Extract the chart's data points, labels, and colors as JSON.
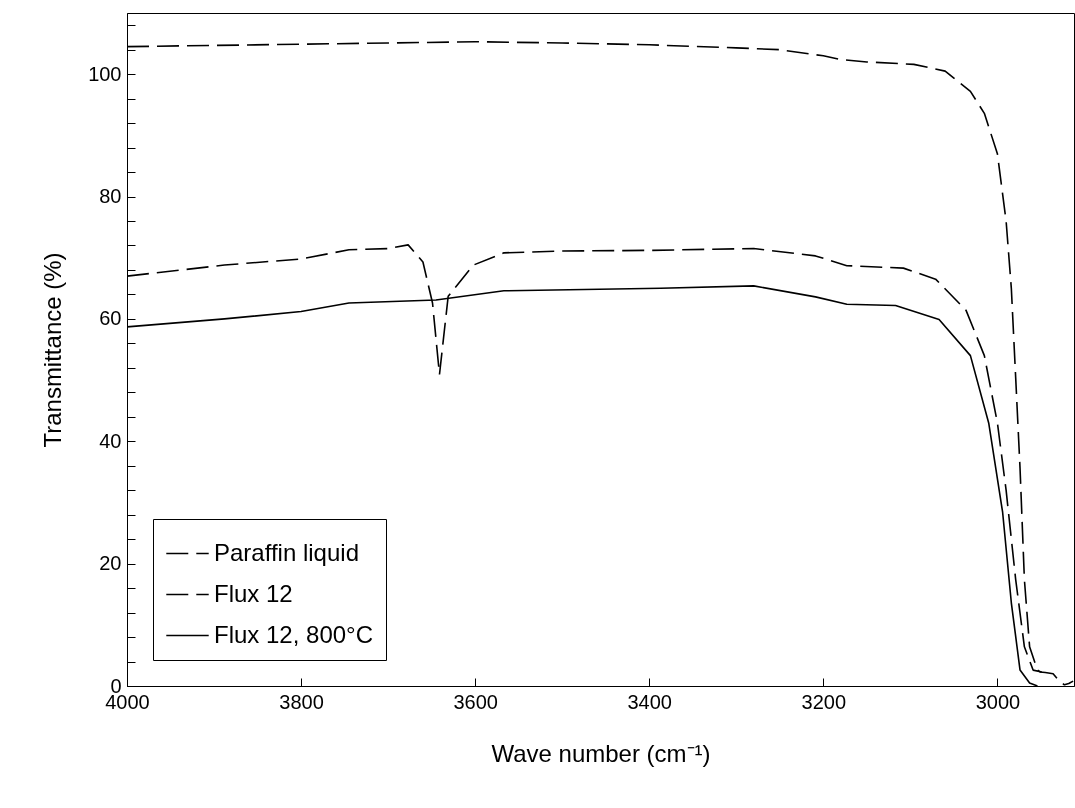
{
  "chart_data": {
    "type": "line",
    "xlabel": "Wave number (cm⁻¹)",
    "ylabel": "Transmittance (%)",
    "xlim": [
      4000,
      2912
    ],
    "xticks": [
      4000,
      3800,
      3600,
      3400,
      3200,
      3000
    ],
    "ylim": [
      0,
      110
    ],
    "yticks": [
      0,
      {
        "value": 4,
        "label": null
      },
      {
        "value": 8,
        "label": null
      },
      {
        "value": 12,
        "label": null
      },
      {
        "value": 16,
        "label": null
      },
      20,
      {
        "value": 24,
        "label": null
      },
      {
        "value": 28,
        "label": null
      },
      {
        "value": 32,
        "label": null
      },
      {
        "value": 36,
        "label": null
      },
      40,
      {
        "value": 44,
        "label": null
      },
      {
        "value": 48,
        "label": null
      },
      {
        "value": 52,
        "label": null
      },
      {
        "value": 56,
        "label": null
      },
      60,
      {
        "value": 64,
        "label": null
      },
      {
        "value": 68,
        "label": null
      },
      {
        "value": 72,
        "label": null
      },
      {
        "value": 76,
        "label": null
      },
      80,
      {
        "value": 84,
        "label": null
      },
      {
        "value": 88,
        "label": null
      },
      {
        "value": 92,
        "label": null
      },
      {
        "value": 96,
        "label": null
      },
      100,
      {
        "value": 104,
        "label": null
      },
      {
        "value": 108,
        "label": null
      }
    ],
    "grid": false,
    "legend": "bottom left",
    "marker": "none",
    "series": [
      {
        "name": "Paraffin liquid",
        "color": "#000000",
        "line_style": "dashed",
        "x": [
          4000,
          3900,
          3800,
          3700,
          3600,
          3500,
          3400,
          3300,
          3250,
          3200,
          3180,
          3150,
          3096,
          3060,
          3031,
          3015,
          3000,
          2990,
          2984,
          2979,
          2974,
          2969,
          2963,
          2954,
          2951,
          2945,
          2936,
          2930,
          2923,
          2918,
          2913
        ],
        "values": [
          104.5,
          104.7,
          104.9,
          105.1,
          105.3,
          105.1,
          104.8,
          104.3,
          104,
          103,
          102.4,
          102,
          101.6,
          100.5,
          97.2,
          93.6,
          87,
          76,
          65,
          50.4,
          35.6,
          17.4,
          6.4,
          2.6,
          2.3,
          2.2,
          2,
          1,
          0.2,
          0.4,
          0.8
        ]
      },
      {
        "name": "Flux 12",
        "color": "#000000",
        "line_style": "dashed",
        "x": [
          4000,
          3888,
          3800,
          3745,
          3700,
          3677,
          3660,
          3649,
          3641,
          3631,
          3602,
          3567,
          3500,
          3400,
          3280,
          3209,
          3173,
          3108,
          3071,
          3036,
          3015,
          3000,
          2990,
          2979,
          2969,
          2959,
          2949
        ],
        "values": [
          67,
          68.8,
          69.8,
          71.3,
          71.5,
          72.1,
          69.3,
          62.6,
          50.9,
          63.7,
          68.8,
          70.8,
          71.1,
          71.2,
          71.5,
          70.3,
          68.7,
          68.3,
          66.5,
          61.4,
          54,
          43,
          32,
          17.4,
          6.4,
          2.6,
          2.3
        ]
      },
      {
        "name": "Flux 12, 800°C",
        "color": "#000000",
        "line_style": "solid",
        "x": [
          4000,
          3888,
          3800,
          3745,
          3645,
          3567,
          3387,
          3280,
          3209,
          3173,
          3117,
          3067,
          3031,
          3010,
          2994,
          2984,
          2974,
          2963,
          2954
        ],
        "values": [
          58.7,
          60,
          61.2,
          62.6,
          63.1,
          64.6,
          65,
          65.4,
          63.6,
          62.4,
          62.2,
          59.9,
          54,
          43,
          28.4,
          13.6,
          2.6,
          0.5,
          0
        ]
      }
    ]
  }
}
